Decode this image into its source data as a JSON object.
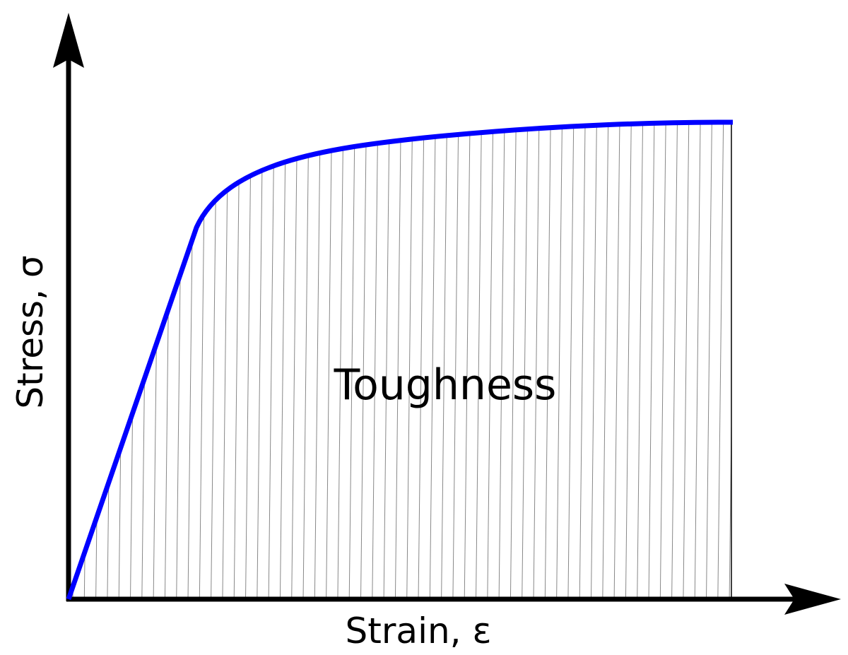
{
  "diagram": {
    "region_label": "Toughness",
    "x_label": "Strain, ε",
    "y_label": "Stress, σ"
  }
}
